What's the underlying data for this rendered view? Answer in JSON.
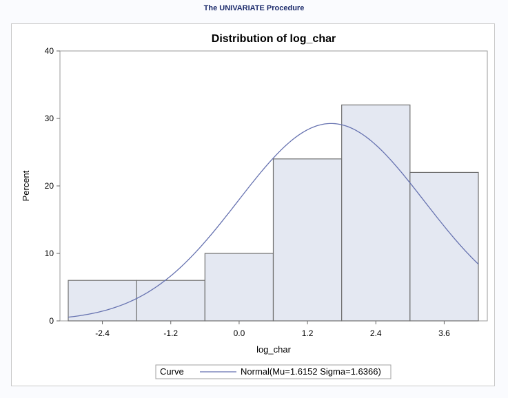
{
  "page": {
    "procedure_title": "The UNIVARIATE Procedure"
  },
  "chart_data": {
    "type": "bar",
    "title": "Distribution of log_char",
    "xlabel": "log_char",
    "ylabel": "Percent",
    "xlim": [
      -3.0,
      4.2
    ],
    "ylim": [
      0,
      40
    ],
    "x_ticks": [
      -2.4,
      -1.2,
      0.0,
      1.2,
      2.4,
      3.6
    ],
    "x_tick_labels": [
      "-2.4",
      "-1.2",
      "0.0",
      "1.2",
      "2.4",
      "3.6"
    ],
    "y_ticks": [
      0,
      10,
      20,
      30,
      40
    ],
    "y_tick_labels": [
      "0",
      "10",
      "20",
      "30",
      "40"
    ],
    "bins": [
      {
        "start": -3.0,
        "end": -1.8,
        "value": 6
      },
      {
        "start": -1.8,
        "end": -0.6,
        "value": 6
      },
      {
        "start": -0.6,
        "end": 0.6,
        "value": 10
      },
      {
        "start": 0.6,
        "end": 1.8,
        "value": 24
      },
      {
        "start": 1.8,
        "end": 3.0,
        "value": 32
      },
      {
        "start": 3.0,
        "end": 4.2,
        "value": 22
      }
    ],
    "normal_curve": {
      "mu": 1.6152,
      "sigma": 1.6366,
      "bin_width": 1.2
    },
    "grid": false,
    "legend": {
      "position": "bottom",
      "title": "Curve",
      "entry": "Normal(Mu=1.6152 Sigma=1.6366)"
    },
    "colors": {
      "bar_fill": "#e4e8f2",
      "bar_stroke": "#6e6e6e",
      "curve": "#6672b0"
    }
  }
}
